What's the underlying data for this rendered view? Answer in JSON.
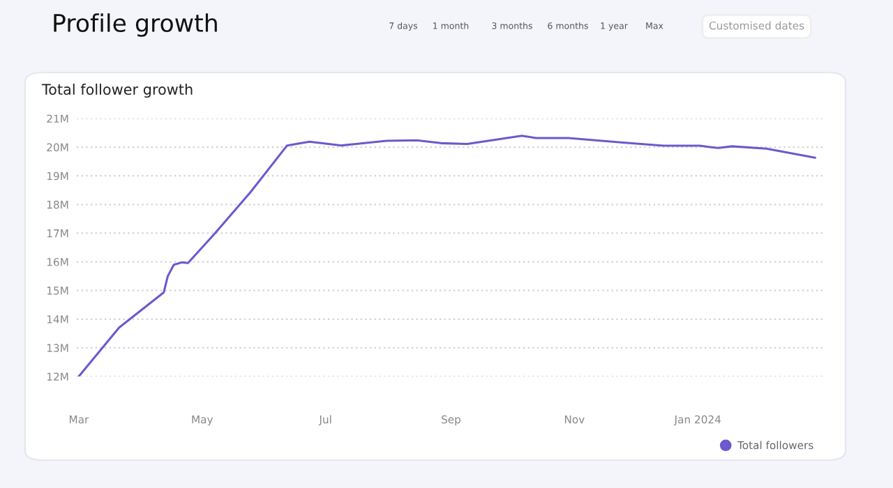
{
  "chart_data": {
    "type": "line",
    "title": "Profile growth",
    "subtitle": "Total follower growth",
    "annotations": [
      "7 days",
      "1 month",
      "3 months",
      "6 months",
      "1 year",
      "Max",
      "Customised dates"
    ],
    "x": [
      "2023-03-01",
      "2023-03-21",
      "2023-04-12",
      "2023-04-14",
      "2023-04-17",
      "2023-04-21",
      "2023-04-24",
      "2023-05-07",
      "2023-05-25",
      "2023-06-12",
      "2023-06-23",
      "2023-07-09",
      "2023-07-31",
      "2023-08-15",
      "2023-08-27",
      "2023-09-09",
      "2023-10-06",
      "2023-10-13",
      "2023-10-29",
      "2023-11-25",
      "2023-12-15",
      "2024-01-02",
      "2024-01-11",
      "2024-01-18",
      "2024-02-04",
      "2024-02-28"
    ],
    "series": [
      {
        "name": "Total followers",
        "color": "#6a5acd",
        "values": [
          12.0,
          13.71,
          14.93,
          15.5,
          15.9,
          15.98,
          15.96,
          16.97,
          18.44,
          20.06,
          20.19,
          20.06,
          20.22,
          20.24,
          20.14,
          20.11,
          20.4,
          20.32,
          20.32,
          20.16,
          20.05,
          20.05,
          19.97,
          20.03,
          19.95,
          19.63
        ]
      }
    ],
    "xlim": [
      "2023-02-28",
      "2024-03-03"
    ],
    "xticks": [
      {
        "value": "2023-03-01",
        "label": "Mar"
      },
      {
        "value": "2023-05-01",
        "label": "May"
      },
      {
        "value": "2023-07-01",
        "label": "Jul"
      },
      {
        "value": "2023-09-01",
        "label": "Sep"
      },
      {
        "value": "2023-11-01",
        "label": "Nov"
      },
      {
        "value": "2024-01-01",
        "label": "Jan 2024"
      }
    ],
    "ylim": [
      12,
      21
    ],
    "yticks": [
      {
        "value": 12,
        "label": "12M"
      },
      {
        "value": 13,
        "label": "13M"
      },
      {
        "value": 14,
        "label": "14M"
      },
      {
        "value": 15,
        "label": "15M"
      },
      {
        "value": 16,
        "label": "16M"
      },
      {
        "value": 17,
        "label": "17M"
      },
      {
        "value": 18,
        "label": "18M"
      },
      {
        "value": 19,
        "label": "19M"
      },
      {
        "value": 20,
        "label": "20M"
      },
      {
        "value": 21,
        "label": "21M"
      }
    ],
    "grid": "y",
    "legend": "bottom right",
    "marker": "none",
    "line_style": "solid"
  }
}
